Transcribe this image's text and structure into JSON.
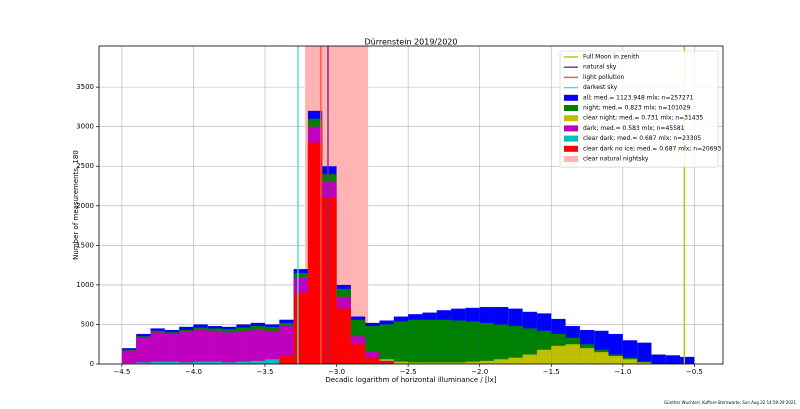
{
  "chart_data": {
    "type": "histogram",
    "title": "Dürrenstein 2019/2020",
    "xlabel": "Decadic logarithm of horizontal illuminance / [lx]",
    "ylabel": "Number of measurements, 180",
    "footer": "Günther Wuchterl, Kuffner-Sternwarte, Sun Aug 22 14:59:29 2021",
    "xlim": [
      -4.66,
      -0.3
    ],
    "ylim": [
      0,
      4020
    ],
    "xticks": [
      {
        "value": -4.5,
        "label": "−4.5"
      },
      {
        "value": -4.0,
        "label": "−4.0"
      },
      {
        "value": -3.5,
        "label": "−3.5"
      },
      {
        "value": -3.0,
        "label": "−3.0"
      },
      {
        "value": -2.5,
        "label": "−2.5"
      },
      {
        "value": -2.0,
        "label": "−2.0"
      },
      {
        "value": -1.5,
        "label": "−1.5"
      },
      {
        "value": -1.0,
        "label": "−1.0"
      },
      {
        "value": -0.5,
        "label": "−0.5"
      }
    ],
    "yticks": [
      0,
      500,
      1000,
      1500,
      2000,
      2500,
      3000,
      3500
    ],
    "grid": true,
    "legend": "upper right",
    "bins": [
      -4.5,
      -4.4,
      -4.3,
      -4.2,
      -4.1,
      -4.0,
      -3.9,
      -3.8,
      -3.7,
      -3.6,
      -3.5,
      -3.4,
      -3.3,
      -3.2,
      -3.1,
      -3.0,
      -2.9,
      -2.8,
      -2.7,
      -2.6,
      -2.5,
      -2.4,
      -2.3,
      -2.2,
      -2.1,
      -2.0,
      -1.9,
      -1.8,
      -1.7,
      -1.6,
      -1.5,
      -1.4,
      -1.3,
      -1.2,
      -1.1,
      -1.0,
      -0.9,
      -0.8,
      -0.7,
      -0.6,
      -0.5
    ],
    "vlines": [
      {
        "name": "Full Moon in zenith",
        "color": "#bfbf00",
        "x": -0.57
      },
      {
        "name": "natural sky",
        "color": "#7a2a8a",
        "x": -3.06
      },
      {
        "name": "light pollution",
        "color": "#ff5050",
        "x": -3.11
      },
      {
        "name": "darkest sky",
        "color": "#40e0d0",
        "x": -3.27
      }
    ],
    "series": [
      {
        "name": "all; med.= 1123.948 mlx; n=257271",
        "color": "#0000ff",
        "values": [
          200,
          380,
          450,
          430,
          470,
          500,
          480,
          470,
          500,
          520,
          500,
          560,
          1200,
          3200,
          2500,
          1000,
          600,
          520,
          550,
          600,
          630,
          650,
          680,
          700,
          710,
          720,
          720,
          700,
          660,
          640,
          570,
          480,
          430,
          420,
          380,
          300,
          270,
          120,
          110,
          90
        ]
      },
      {
        "name": "night; med.= 0.823 mlx; n=101029",
        "color": "#008000",
        "values": [
          180,
          350,
          420,
          400,
          430,
          460,
          450,
          440,
          460,
          480,
          470,
          520,
          1150,
          3100,
          2400,
          950,
          560,
          480,
          500,
          540,
          560,
          560,
          560,
          550,
          540,
          520,
          500,
          480,
          450,
          420,
          380,
          330,
          250,
          180,
          120,
          80,
          30,
          0,
          0,
          0
        ]
      },
      {
        "name": "clear night; med.= 0.731 mlx; n=31435",
        "color": "#bfbf00",
        "values": [
          20,
          40,
          50,
          40,
          40,
          50,
          50,
          40,
          50,
          60,
          80,
          150,
          900,
          2800,
          2100,
          750,
          280,
          110,
          60,
          30,
          20,
          20,
          20,
          20,
          30,
          40,
          60,
          80,
          120,
          180,
          230,
          250,
          200,
          150,
          100,
          60,
          20,
          0,
          0,
          0
        ]
      },
      {
        "name": "dark; med.= 0.583 mlx; n=45581",
        "color": "#bf00bf",
        "values": [
          170,
          330,
          400,
          380,
          410,
          440,
          420,
          400,
          420,
          440,
          420,
          480,
          1100,
          3000,
          2300,
          850,
          350,
          150,
          40,
          0,
          0,
          0,
          0,
          0,
          0,
          0,
          0,
          0,
          0,
          0,
          0,
          0,
          0,
          0,
          0,
          0,
          0,
          0,
          0,
          0
        ]
      },
      {
        "name": "clear dark; med.= 0.687 mlx; n=23305",
        "color": "#00bfbf",
        "values": [
          10,
          20,
          30,
          30,
          20,
          30,
          30,
          20,
          30,
          40,
          60,
          100,
          800,
          2600,
          1900,
          600,
          180,
          60,
          10,
          0,
          0,
          0,
          0,
          0,
          0,
          0,
          0,
          0,
          0,
          0,
          0,
          0,
          0,
          0,
          0,
          0,
          0,
          0,
          0,
          0
        ]
      },
      {
        "name": "clear dark no ice; med.= 0.687 mlx; n=20693",
        "color": "#ff0000",
        "values": [
          0,
          0,
          0,
          0,
          0,
          0,
          0,
          0,
          0,
          0,
          0,
          100,
          900,
          2800,
          2100,
          700,
          250,
          80,
          20,
          0,
          0,
          0,
          0,
          0,
          0,
          0,
          0,
          0,
          0,
          0,
          0,
          0,
          0,
          0,
          0,
          0,
          0,
          0,
          0,
          0
        ]
      }
    ],
    "span": {
      "name": "clear natural nightsky",
      "color": "#ffb3b3",
      "x": [
        -3.22,
        -2.78
      ]
    }
  }
}
